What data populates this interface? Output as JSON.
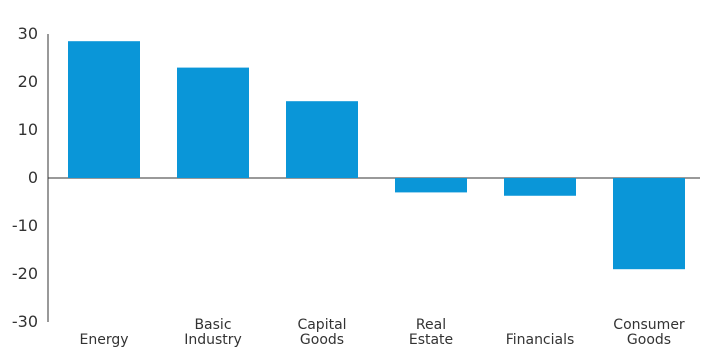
{
  "chart_data": {
    "type": "bar",
    "title": "",
    "xlabel": "",
    "ylabel": "",
    "categories": [
      [
        "Energy"
      ],
      [
        "Basic",
        "Industry"
      ],
      [
        "Capital",
        "Goods"
      ],
      [
        "Real",
        "Estate"
      ],
      [
        "Financials"
      ],
      [
        "Consumer",
        "Goods"
      ]
    ],
    "values": [
      28.5,
      23,
      16,
      -3,
      -3.7,
      -19
    ],
    "ylim": [
      -30,
      30
    ],
    "yticks": [
      "30",
      "20",
      "10",
      "0",
      "-10",
      "-20",
      "-30"
    ],
    "bar_color": "#0a96d8",
    "grid": false,
    "legend": "none"
  }
}
